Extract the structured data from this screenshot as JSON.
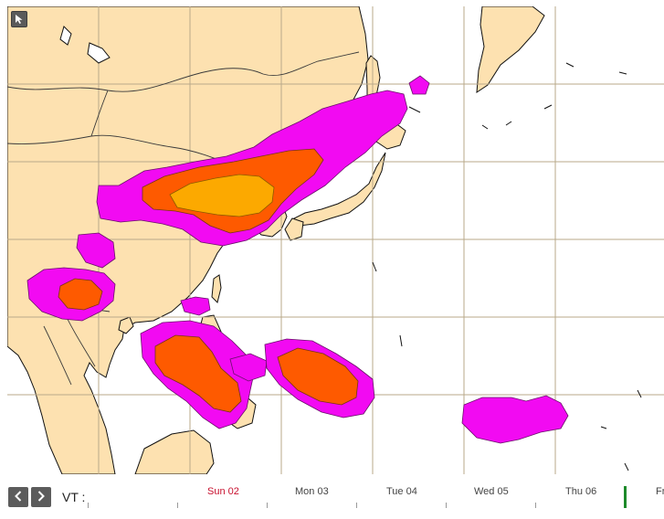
{
  "map": {
    "colors": {
      "ocean": "#ffffff",
      "land": "#fde1b0",
      "coast": "#111111",
      "border": "#3a3a3a",
      "grid": "#b9a98a",
      "prob_low": "#f20af2",
      "prob_mid": "#fe5a00",
      "prob_high": "#fca900"
    },
    "layers": [
      "probability-low",
      "probability-medium",
      "probability-high"
    ]
  },
  "toolbar": {
    "cursor_icon": "pointer-arrow-icon"
  },
  "timeline": {
    "prev_icon": "chevron-left-icon",
    "next_icon": "chevron-right-icon",
    "vt_label": "VT :",
    "days": [
      "Sun 02",
      "Mon 03",
      "Tue 04",
      "Wed 05",
      "Thu 06",
      "Fr"
    ],
    "current_day": "Sun 02",
    "marker_color": "#1d8a2a"
  }
}
